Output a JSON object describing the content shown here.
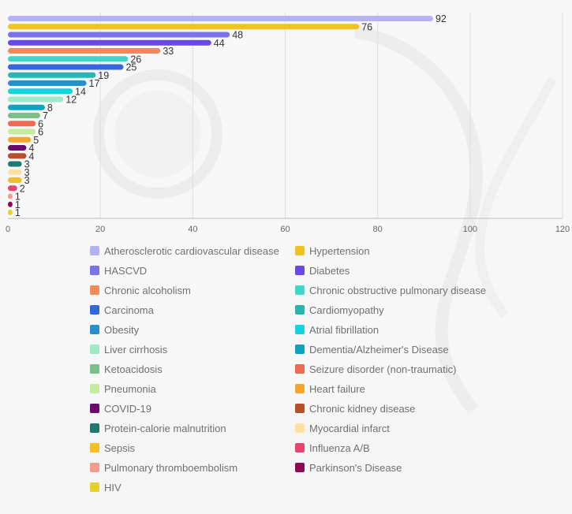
{
  "chart_data": {
    "type": "bar",
    "orientation": "horizontal",
    "xlim": [
      0,
      120
    ],
    "xticks": [
      0,
      20,
      40,
      60,
      80,
      100,
      120
    ],
    "grid": true,
    "legend_position": "bottom",
    "series": [
      {
        "name": "Atherosclerotic cardiovascular disease",
        "value": 92,
        "color": "#b3b3f0"
      },
      {
        "name": "Hypertension",
        "value": 76,
        "color": "#f2c320"
      },
      {
        "name": "HASCVD",
        "value": 48,
        "color": "#7b73ea"
      },
      {
        "name": "Diabetes",
        "value": 44,
        "color": "#6a47e8"
      },
      {
        "name": "Chronic alcoholism",
        "value": 33,
        "color": "#f08a5a"
      },
      {
        "name": "Chronic obstructive pulmonary disease",
        "value": 26,
        "color": "#3fd6c8"
      },
      {
        "name": "Carcinoma",
        "value": 25,
        "color": "#3366e0"
      },
      {
        "name": "Cardiomyopathy",
        "value": 19,
        "color": "#2bb5ae"
      },
      {
        "name": "Obesity",
        "value": 17,
        "color": "#2a8fce"
      },
      {
        "name": "Atrial fibrillation",
        "value": 14,
        "color": "#10d4e0"
      },
      {
        "name": "Liver cirrhosis",
        "value": 12,
        "color": "#9ceac8"
      },
      {
        "name": "Dementia/Alzheimer's Disease",
        "value": 8,
        "color": "#0aa3c2"
      },
      {
        "name": "Ketoacidosis",
        "value": 7,
        "color": "#7bbf8c"
      },
      {
        "name": "Seizure disorder (non-traumatic)",
        "value": 6,
        "color": "#ef6a50"
      },
      {
        "name": "Pneumonia",
        "value": 6,
        "color": "#c5eba0"
      },
      {
        "name": "Heart failure",
        "value": 5,
        "color": "#f7a531"
      },
      {
        "name": "COVID-19",
        "value": 4,
        "color": "#6a0a6a"
      },
      {
        "name": "Chronic kidney disease",
        "value": 4,
        "color": "#b84f2a"
      },
      {
        "name": "Protein-calorie malnutrition",
        "value": 3,
        "color": "#1f7a6e"
      },
      {
        "name": "Myocardial infarct",
        "value": 3,
        "color": "#fde0a0"
      },
      {
        "name": "Sepsis",
        "value": 3,
        "color": "#f3bf24"
      },
      {
        "name": "Influenza A/B",
        "value": 2,
        "color": "#e8456a"
      },
      {
        "name": "Pulmonary thromboembolism",
        "value": 1,
        "color": "#f59a88"
      },
      {
        "name": "Parkinson's Disease",
        "value": 1,
        "color": "#8a0b50"
      },
      {
        "name": "HIV",
        "value": 1,
        "color": "#e5cf2a"
      }
    ]
  }
}
